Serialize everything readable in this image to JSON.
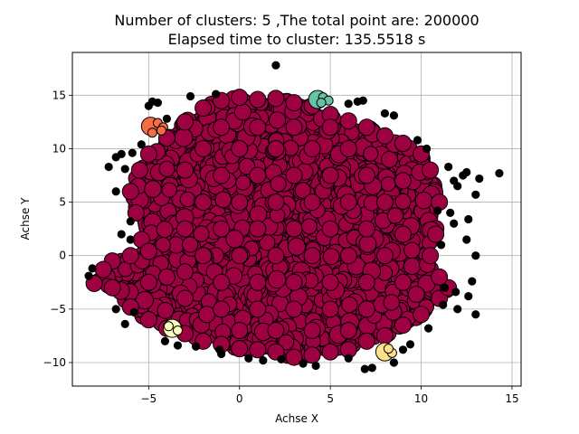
{
  "chart_data": {
    "type": "scatter",
    "title_line1": "Number of clusters: 5 ,The total point are: 200000",
    "title_line2": "Elapsed time to cluster:  135.5518 s",
    "xlabel": "Achse X",
    "ylabel": "Achse Y",
    "xlim": [
      -9.2,
      15.5
    ],
    "ylim": [
      -12.2,
      19.0
    ],
    "xticks": [
      -5,
      0,
      5,
      10,
      15
    ],
    "xtick_labels": [
      "−5",
      "0",
      "5",
      "10",
      "15"
    ],
    "yticks": [
      -10,
      -5,
      0,
      5,
      10,
      15
    ],
    "ytick_labels": [
      "−10",
      "−5",
      "0",
      "5",
      "10",
      "15"
    ],
    "grid": true,
    "colors": {
      "main_cluster": "#9e0142",
      "orange_cluster": "#f46d43",
      "teal_cluster": "#66c2a5",
      "yellow_cluster": "#fee08b",
      "pale_cluster": "#ffffbf",
      "noise": "#000000",
      "edge": "#000000",
      "grid": "#b0b0b0"
    },
    "series": [
      {
        "cluster": 0,
        "color": "#9e0142",
        "points": [
          [
            -8,
            -2.6
          ],
          [
            -7,
            -3
          ],
          [
            -6,
            -4.8
          ],
          [
            -5,
            -6
          ],
          [
            -4,
            -6.8
          ],
          [
            -3,
            -7.3
          ],
          [
            -2,
            -8
          ],
          [
            -1,
            -8.3
          ],
          [
            0,
            -8.7
          ],
          [
            1,
            -8.8
          ],
          [
            2,
            -9
          ],
          [
            3,
            -9.5
          ],
          [
            4,
            -9.3
          ],
          [
            5,
            -9
          ],
          [
            6,
            -8.8
          ],
          [
            7,
            -8
          ],
          [
            8,
            -7.5
          ],
          [
            9,
            -6.5
          ],
          [
            10,
            -5.5
          ],
          [
            11,
            -4
          ],
          [
            11.5,
            -3
          ],
          [
            11,
            -2
          ],
          [
            10.5,
            0
          ],
          [
            10.8,
            2
          ],
          [
            11,
            5
          ],
          [
            10.5,
            8
          ],
          [
            10,
            9.5
          ],
          [
            9,
            10.5
          ],
          [
            8,
            11.2
          ],
          [
            7,
            12
          ],
          [
            6,
            12.6
          ],
          [
            5,
            13.2
          ],
          [
            4,
            14
          ],
          [
            3,
            14.3
          ],
          [
            2,
            14.7
          ],
          [
            1,
            14.6
          ],
          [
            0,
            14.8
          ],
          [
            -1,
            14.5
          ],
          [
            -2,
            13.8
          ],
          [
            -3,
            12.5
          ],
          [
            -4,
            11
          ],
          [
            -5,
            9.5
          ],
          [
            -5.5,
            8
          ],
          [
            -6,
            6
          ],
          [
            -5.7,
            4
          ],
          [
            -5.4,
            1.5
          ],
          [
            -5,
            0.4
          ],
          [
            -6,
            0
          ],
          [
            -7,
            -0.5
          ],
          [
            -7.5,
            -1.3
          ],
          [
            0,
            0
          ],
          [
            2,
            0
          ],
          [
            4,
            0
          ],
          [
            6,
            0
          ],
          [
            8,
            0
          ],
          [
            -2,
            0
          ],
          [
            -4,
            -2
          ],
          [
            0,
            5
          ],
          [
            2,
            5
          ],
          [
            4,
            5
          ],
          [
            6,
            5
          ],
          [
            8,
            5
          ],
          [
            -2,
            5
          ],
          [
            0,
            10
          ],
          [
            2,
            10
          ],
          [
            4,
            10
          ],
          [
            6,
            10
          ],
          [
            -2,
            10
          ],
          [
            -3,
            8
          ],
          [
            1,
            -5
          ],
          [
            3,
            -5
          ],
          [
            5,
            -5
          ],
          [
            7,
            -5
          ],
          [
            -1,
            -5
          ],
          [
            -3,
            -4
          ],
          [
            9,
            2
          ],
          [
            9,
            7
          ],
          [
            1,
            12
          ],
          [
            3,
            12
          ],
          [
            -1,
            12
          ],
          [
            5,
            12
          ],
          [
            1,
            2.5
          ],
          [
            3,
            2.5
          ],
          [
            5,
            2.5
          ],
          [
            7,
            2.5
          ],
          [
            -1,
            2.5
          ],
          [
            -3,
            2.5
          ],
          [
            1,
            7.5
          ],
          [
            3,
            7.5
          ],
          [
            5,
            7.5
          ],
          [
            7,
            7.5
          ],
          [
            -1,
            7.5
          ],
          [
            1,
            -2.5
          ],
          [
            3,
            -2.5
          ],
          [
            5,
            -2.5
          ],
          [
            7,
            -2.5
          ],
          [
            -1,
            -2.5
          ],
          [
            -5,
            -2.5
          ],
          [
            9,
            -2.5
          ],
          [
            2,
            -7
          ],
          [
            4,
            -7
          ],
          [
            6,
            -7
          ],
          [
            0,
            -7
          ]
        ]
      },
      {
        "cluster": 1,
        "color": "#f46d43",
        "points": [
          [
            -4.9,
            12.1
          ],
          [
            -4.5,
            12.4
          ],
          [
            -4.2,
            12.0
          ],
          [
            -4.8,
            11.5
          ],
          [
            -4.3,
            11.7
          ]
        ]
      },
      {
        "cluster": 2,
        "color": "#66c2a5",
        "points": [
          [
            4.3,
            14.6
          ],
          [
            4.6,
            14.8
          ],
          [
            4.9,
            14.5
          ],
          [
            4.5,
            14.3
          ]
        ]
      },
      {
        "cluster": 3,
        "color": "#fee08b",
        "points": [
          [
            8.0,
            -9.0
          ],
          [
            8.4,
            -9.1
          ],
          [
            8.2,
            -8.7
          ]
        ]
      },
      {
        "cluster": 4,
        "color": "#ffffbf",
        "points": [
          [
            -3.7,
            -6.8
          ],
          [
            -3.4,
            -7.0
          ],
          [
            -3.9,
            -6.6
          ]
        ]
      },
      {
        "cluster": -1,
        "color": "#000000",
        "points": [
          [
            2.0,
            17.8
          ],
          [
            14.3,
            7.7
          ],
          [
            13.2,
            7.2
          ],
          [
            12.5,
            7.8
          ],
          [
            12.3,
            7.5
          ],
          [
            13.0,
            5.7
          ],
          [
            12.6,
            3.4
          ],
          [
            11.8,
            3.0
          ],
          [
            12.5,
            1.5
          ],
          [
            13.0,
            0.0
          ],
          [
            12.8,
            -2.4
          ],
          [
            13.0,
            -5.5
          ],
          [
            12.0,
            -5.0
          ],
          [
            -6.8,
            9.2
          ],
          [
            -6.3,
            8.1
          ],
          [
            -6.8,
            6.0
          ],
          [
            -6.0,
            3.2
          ],
          [
            -6.5,
            2.0
          ],
          [
            -6.0,
            1.5
          ],
          [
            -6.3,
            -6.4
          ],
          [
            -3.4,
            -8.4
          ],
          [
            6.9,
            -10.6
          ],
          [
            7.3,
            -10.5
          ],
          [
            8.5,
            -10.0
          ],
          [
            4.2,
            -10.3
          ],
          [
            3.5,
            -10.1
          ],
          [
            1.3,
            -9.8
          ],
          [
            0.5,
            -9.6
          ],
          [
            -1.0,
            -9.2
          ],
          [
            9.4,
            -8.3
          ],
          [
            -4.8,
            14.4
          ],
          [
            -5.0,
            14.0
          ],
          [
            -4.5,
            14.3
          ],
          [
            -2.7,
            14.9
          ],
          [
            -1.3,
            15.1
          ],
          [
            6.5,
            14.4
          ],
          [
            6.8,
            14.5
          ],
          [
            6.0,
            14.2
          ],
          [
            8.0,
            13.3
          ],
          [
            8.5,
            13.1
          ],
          [
            9.8,
            10.8
          ],
          [
            10.3,
            10.0
          ],
          [
            11.5,
            8.3
          ],
          [
            11.8,
            7.0
          ],
          [
            12.0,
            6.5
          ],
          [
            10.9,
            4.2
          ],
          [
            11.6,
            4.0
          ],
          [
            11.1,
            1.0
          ],
          [
            11.3,
            -3.0
          ],
          [
            11.9,
            -3.4
          ],
          [
            12.6,
            -3.8
          ],
          [
            -8.1,
            -1.2
          ],
          [
            -8.3,
            -1.9
          ],
          [
            -6.8,
            -5.0
          ],
          [
            -5.8,
            -5.3
          ],
          [
            -4.1,
            -8.0
          ],
          [
            -2.4,
            -8.5
          ],
          [
            -1.1,
            -8.8
          ],
          [
            2.3,
            -9.7
          ],
          [
            6.0,
            -9.6
          ],
          [
            9.0,
            -8.8
          ],
          [
            10.4,
            -6.8
          ],
          [
            11.2,
            -4.6
          ],
          [
            -4.0,
            12.8
          ],
          [
            -5.4,
            10.4
          ],
          [
            -5.9,
            9.6
          ],
          [
            -6.5,
            9.5
          ],
          [
            -7.2,
            8.3
          ]
        ]
      }
    ]
  }
}
